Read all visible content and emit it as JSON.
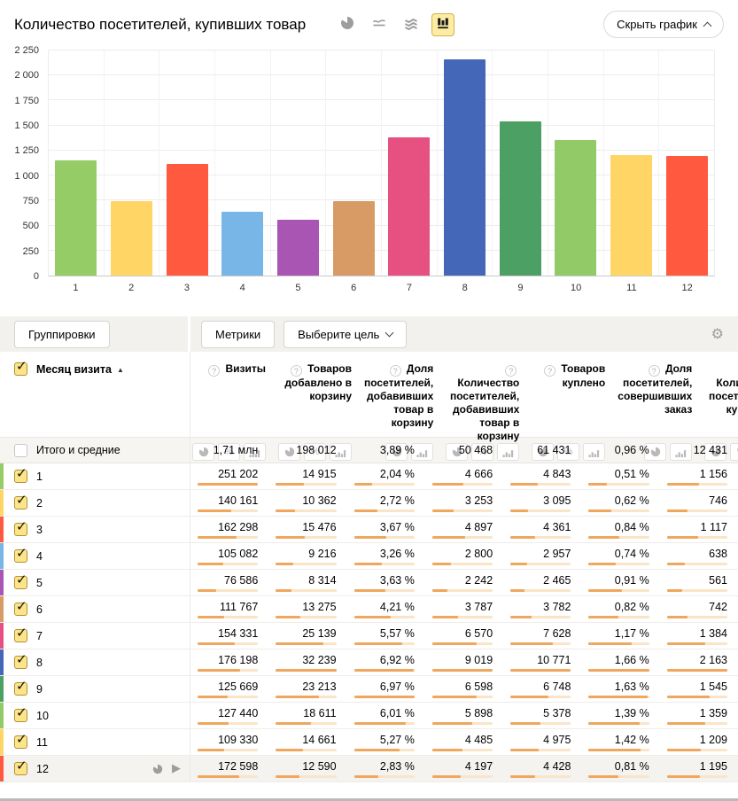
{
  "header": {
    "title": "Количество посетителей, купивших товар",
    "chart_types": [
      "pie",
      "line",
      "stacked",
      "bars"
    ],
    "selected_chart_type": "bars",
    "hide_chart_label": "Скрыть график"
  },
  "chart_data": {
    "type": "bar",
    "title": "Количество посетителей, купивших товар",
    "categories": [
      "1",
      "2",
      "3",
      "4",
      "5",
      "6",
      "7",
      "8",
      "9",
      "10",
      "11",
      "12"
    ],
    "values": [
      1156,
      746,
      1117,
      638,
      561,
      742,
      1384,
      2163,
      1545,
      1359,
      1209,
      1195
    ],
    "bar_colors": [
      "#96cc66",
      "#ffd666",
      "#ff5940",
      "#77b6e6",
      "#a855b3",
      "#d89b66",
      "#e65181",
      "#4467b8",
      "#4da064",
      "#93ca68",
      "#ffd666",
      "#ff5940"
    ],
    "xlabel": "",
    "ylabel": "",
    "ylim": [
      0,
      2250
    ],
    "yticks": [
      0,
      250,
      500,
      750,
      1000,
      1250,
      1500,
      1750,
      2000,
      2250
    ],
    "ytick_labels": [
      "0",
      "250",
      "500",
      "750",
      "1 000",
      "1 250",
      "1 500",
      "1 750",
      "2 000",
      "2 250"
    ],
    "grid": true,
    "legend": "none"
  },
  "toolbar": {
    "groupings_label": "Группировки",
    "metrics_label": "Метрики",
    "goal_label": "Выберите цель",
    "gear_icon": "settings"
  },
  "table": {
    "dimension_header": "Месяц визита",
    "sort": "asc",
    "columns": [
      {
        "label": "Визиты",
        "toggles": [
          "pie",
          "percent",
          "bars"
        ],
        "selected": null
      },
      {
        "label": "Товаров добавлено в корзину",
        "toggles": [
          "pie",
          "percent",
          "bars"
        ],
        "selected": null
      },
      {
        "label": "Доля посетителей, добавивших товар в корзину",
        "toggles": [
          "pie",
          "bars"
        ],
        "selected": null
      },
      {
        "label": "Количество посетителей, добавивших товар в корзину",
        "toggles": [
          "pie",
          "percent",
          "bars"
        ],
        "selected": null
      },
      {
        "label": "Товаров куплено",
        "toggles": [
          "pie",
          "percent",
          "bars"
        ],
        "selected": null
      },
      {
        "label": "Доля посетителей, совершивших заказ",
        "toggles": [
          "pie",
          "bars"
        ],
        "selected": null
      },
      {
        "label": "Количество посетителей, купивших товар",
        "toggles": [
          "pie",
          "percent",
          "bars"
        ],
        "selected": "bars"
      }
    ],
    "totals": {
      "label": "Итого и средние",
      "checked": false,
      "values": [
        "1,71 млн",
        "198 012",
        "3,89 %",
        "50 468",
        "61 431",
        "0,96 %",
        "12 431"
      ]
    },
    "rows": [
      {
        "label": "1",
        "color": "#96cc66",
        "checked": true,
        "hovered": false,
        "values": [
          "251 202",
          "14 915",
          "2,04 %",
          "4 666",
          "4 843",
          "0,51 %",
          "1 156"
        ]
      },
      {
        "label": "2",
        "color": "#ffd666",
        "checked": true,
        "hovered": false,
        "values": [
          "140 161",
          "10 362",
          "2,72 %",
          "3 253",
          "3 095",
          "0,62 %",
          "746"
        ]
      },
      {
        "label": "3",
        "color": "#ff5940",
        "checked": true,
        "hovered": false,
        "values": [
          "162 298",
          "15 476",
          "3,67 %",
          "4 897",
          "4 361",
          "0,84 %",
          "1 117"
        ]
      },
      {
        "label": "4",
        "color": "#77b6e6",
        "checked": true,
        "hovered": false,
        "values": [
          "105 082",
          "9 216",
          "3,26 %",
          "2 800",
          "2 957",
          "0,74 %",
          "638"
        ]
      },
      {
        "label": "5",
        "color": "#a855b3",
        "checked": true,
        "hovered": false,
        "values": [
          "76 586",
          "8 314",
          "3,63 %",
          "2 242",
          "2 465",
          "0,91 %",
          "561"
        ]
      },
      {
        "label": "6",
        "color": "#d89b66",
        "checked": true,
        "hovered": false,
        "values": [
          "111 767",
          "13 275",
          "4,21 %",
          "3 787",
          "3 782",
          "0,82 %",
          "742"
        ]
      },
      {
        "label": "7",
        "color": "#e65181",
        "checked": true,
        "hovered": false,
        "values": [
          "154 331",
          "25 139",
          "5,57 %",
          "6 570",
          "7 628",
          "1,17 %",
          "1 384"
        ]
      },
      {
        "label": "8",
        "color": "#4467b8",
        "checked": true,
        "hovered": false,
        "values": [
          "176 198",
          "32 239",
          "6,92 %",
          "9 019",
          "10 771",
          "1,66 %",
          "2 163"
        ]
      },
      {
        "label": "9",
        "color": "#4da064",
        "checked": true,
        "hovered": false,
        "values": [
          "125 669",
          "23 213",
          "6,97 %",
          "6 598",
          "6 748",
          "1,63 %",
          "1 545"
        ]
      },
      {
        "label": "10",
        "color": "#93ca68",
        "checked": true,
        "hovered": false,
        "values": [
          "127 440",
          "18 611",
          "6,01 %",
          "5 898",
          "5 378",
          "1,39 %",
          "1 359"
        ]
      },
      {
        "label": "11",
        "color": "#ffd666",
        "checked": true,
        "hovered": false,
        "values": [
          "109 330",
          "14 661",
          "5,27 %",
          "4 485",
          "4 975",
          "1,42 %",
          "1 209"
        ]
      },
      {
        "label": "12",
        "color": "#ff5940",
        "checked": true,
        "hovered": true,
        "values": [
          "172 598",
          "12 590",
          "2,83 %",
          "4 197",
          "4 428",
          "0,81 %",
          "1 195"
        ]
      }
    ]
  }
}
